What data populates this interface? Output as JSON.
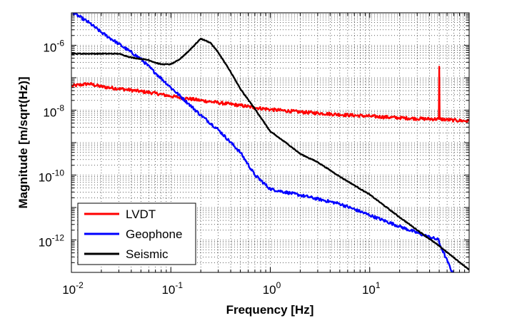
{
  "chart_data": {
    "type": "line",
    "xlabel": "Frequency [Hz]",
    "ylabel": "Magnitude [m/sqrt(Hz)]",
    "xscale": "log",
    "yscale": "log",
    "xlim": [
      0.01,
      100
    ],
    "ylim": [
      1e-13,
      1e-05
    ],
    "grid": "dotted, major and minor",
    "legend_placement": "bottom-left",
    "x_ticks": [
      {
        "base": "10",
        "exp": "-2"
      },
      {
        "base": "10",
        "exp": "-1"
      },
      {
        "base": "10",
        "exp": "0"
      },
      {
        "base": "10",
        "exp": "1"
      }
    ],
    "y_ticks": [
      {
        "base": "10",
        "exp": "-6"
      },
      {
        "base": "10",
        "exp": "-8"
      },
      {
        "base": "10",
        "exp": "-10"
      },
      {
        "base": "10",
        "exp": "-12"
      }
    ],
    "series": [
      {
        "name": "LVDT",
        "color": "#ff0000",
        "points": [
          [
            0.01,
            5.5e-08
          ],
          [
            0.013,
            6.2e-08
          ],
          [
            0.015,
            6.5e-08
          ],
          [
            0.02,
            5.3e-08
          ],
          [
            0.03,
            4.6e-08
          ],
          [
            0.05,
            3.8e-08
          ],
          [
            0.07,
            3.3e-08
          ],
          [
            0.1,
            2.7e-08
          ],
          [
            0.2,
            2e-08
          ],
          [
            0.3,
            1.7e-08
          ],
          [
            0.5,
            1.4e-08
          ],
          [
            0.7,
            1.2e-08
          ],
          [
            1.0,
            1.05e-08
          ],
          [
            2.0,
            8.8e-09
          ],
          [
            5.0,
            7.3e-09
          ],
          [
            10,
            6.5e-09
          ],
          [
            20,
            5.8e-09
          ],
          [
            35,
            5.4e-09
          ],
          [
            49.5,
            5.3e-09
          ],
          [
            50.0,
            2.2e-07
          ],
          [
            50.5,
            5.3e-09
          ],
          [
            70,
            4.9e-09
          ],
          [
            100,
            4.6e-09
          ]
        ]
      },
      {
        "name": "Geophone",
        "color": "#0000ff",
        "points": [
          [
            0.0095,
            1.2e-05
          ],
          [
            0.015,
            5e-06
          ],
          [
            0.02,
            2.5e-06
          ],
          [
            0.03,
            1.1e-06
          ],
          [
            0.05,
            3.8e-07
          ],
          [
            0.07,
            1.4e-07
          ],
          [
            0.1,
            5e-08
          ],
          [
            0.15,
            1.6e-08
          ],
          [
            0.2,
            7e-09
          ],
          [
            0.3,
            2.5e-09
          ],
          [
            0.5,
            5e-10
          ],
          [
            0.7,
            1e-10
          ],
          [
            1.0,
            3.7e-11
          ],
          [
            2.0,
            2.4e-11
          ],
          [
            5.0,
            1.3e-11
          ],
          [
            10,
            5.8e-12
          ],
          [
            20,
            2.6e-12
          ],
          [
            35,
            1.4e-12
          ],
          [
            49.5,
            1e-12
          ],
          [
            50.0,
            8e-13
          ],
          [
            50.5,
            7.5e-13
          ],
          [
            70,
            8e-14
          ],
          [
            100,
            5.5e-14
          ]
        ]
      },
      {
        "name": "Seismic",
        "color": "#000000",
        "points": [
          [
            0.01,
            5.5e-07
          ],
          [
            0.03,
            5.5e-07
          ],
          [
            0.04,
            4.2e-07
          ],
          [
            0.05,
            3.8e-07
          ],
          [
            0.06,
            3.5e-07
          ],
          [
            0.07,
            2.9e-07
          ],
          [
            0.08,
            2.6e-07
          ],
          [
            0.1,
            2.6e-07
          ],
          [
            0.12,
            3.5e-07
          ],
          [
            0.15,
            6.5e-07
          ],
          [
            0.2,
            1.6e-06
          ],
          [
            0.25,
            1.2e-06
          ],
          [
            0.3,
            6e-07
          ],
          [
            0.4,
            1.5e-07
          ],
          [
            0.5,
            4.5e-08
          ],
          [
            0.7,
            1.1e-08
          ],
          [
            1.0,
            2.2e-09
          ],
          [
            1.5,
            9e-10
          ],
          [
            2.0,
            4.5e-10
          ],
          [
            3.0,
            2.5e-10
          ],
          [
            5.0,
            9e-11
          ],
          [
            10,
            2.5e-11
          ],
          [
            20,
            5e-12
          ],
          [
            50,
            6.5e-13
          ],
          [
            100,
            1.2e-13
          ]
        ]
      }
    ]
  }
}
